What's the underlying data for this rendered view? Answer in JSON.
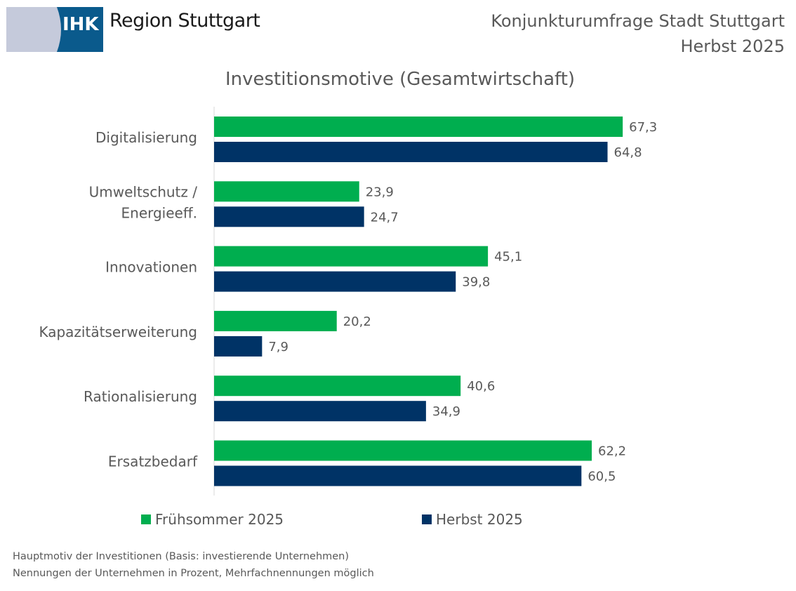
{
  "logo": {
    "mark": "IHK",
    "text": "Region Stuttgart",
    "colors": {
      "blue": "#0a5a8c",
      "grey": "#c5cadb"
    }
  },
  "header": {
    "line1": "Konjunkturumfrage Stadt Stuttgart",
    "line2": "Herbst 2025"
  },
  "chart_data": {
    "type": "bar",
    "orientation": "horizontal",
    "title": "Investitionsmotive (Gesamtwirtschaft)",
    "categories": [
      "Digitalisierung",
      "Umweltschutz / Energieeff.",
      "Innovationen",
      "Kapazitätserweiterung",
      "Rationalisierung",
      "Ersatzbedarf"
    ],
    "category_lines": [
      [
        "Digitalisierung"
      ],
      [
        "Umweltschutz /",
        "Energieeff."
      ],
      [
        "Innovationen"
      ],
      [
        "Kapazitätserweiterung"
      ],
      [
        "Rationalisierung"
      ],
      [
        "Ersatzbedarf"
      ]
    ],
    "series": [
      {
        "name": "Frühsommer 2025",
        "color": "#00ae4f",
        "values": [
          67.3,
          23.9,
          45.1,
          20.2,
          40.6,
          62.2
        ],
        "labels": [
          "67,3",
          "23,9",
          "45,1",
          "20,2",
          "40,6",
          "62,2"
        ]
      },
      {
        "name": "Herbst 2025",
        "color": "#003366",
        "values": [
          64.8,
          24.7,
          39.8,
          7.9,
          34.9,
          60.5
        ],
        "labels": [
          "64,8",
          "24,7",
          "39,8",
          "7,9",
          "34,9",
          "60,5"
        ]
      }
    ],
    "xlim": [
      0,
      80
    ],
    "grid": false,
    "legend": "bottom"
  },
  "footnote": {
    "line1": "Hauptmotiv der Investitionen (Basis: investierende Unternehmen)",
    "line2": "Nennungen der Unternehmen in Prozent, Mehrfachnennungen möglich"
  }
}
